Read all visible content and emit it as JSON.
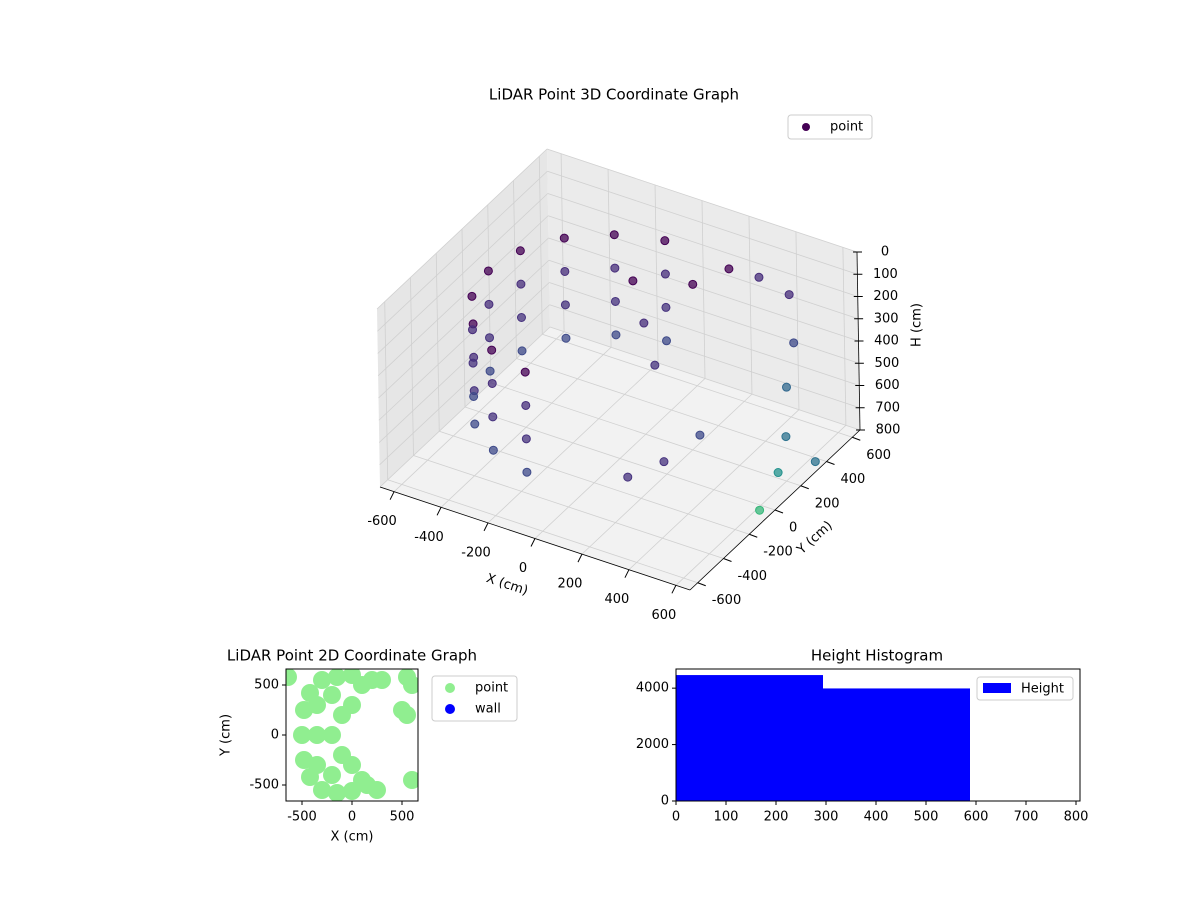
{
  "chart_data": [
    {
      "type": "scatter3d",
      "title": "LiDAR Point 3D Coordinate Graph",
      "xlabel": "X (cm)",
      "ylabel": "Y (cm)",
      "zlabel": "H (cm)",
      "xlim": [
        -660,
        660
      ],
      "ylim": [
        -660,
        660
      ],
      "zlim": [
        800,
        0
      ],
      "xticks": [
        -600,
        -400,
        -200,
        0,
        200,
        400,
        600
      ],
      "yticks": [
        -600,
        -400,
        -200,
        0,
        200,
        400,
        600
      ],
      "zticks": [
        0,
        100,
        200,
        300,
        400,
        500,
        600,
        700,
        800
      ],
      "grid": true,
      "legend": "upper right",
      "series": [
        {
          "name": "point",
          "color": "#440154",
          "x": [
            -96,
            -275,
            -421,
            -517,
            -550,
            -517,
            -421,
            -275,
            -96,
            -96,
            -275,
            -421,
            -517,
            -550,
            -517,
            -421,
            -275,
            -96,
            -96,
            -275,
            -421,
            -517,
            -550,
            -517,
            -421,
            -275,
            -96,
            -96,
            -275,
            -421,
            -517,
            -550,
            -517,
            -421,
            -275,
            -96,
            100,
            200,
            300,
            400,
            500,
            550,
            600,
            620,
            300,
            200,
            400,
            0,
            100,
            -100,
            650,
            640
          ],
          "y": [
            542,
            476,
            354,
            188,
            0,
            -188,
            -354,
            -476,
            -542,
            542,
            476,
            354,
            188,
            0,
            -188,
            -354,
            -476,
            -542,
            542,
            476,
            354,
            188,
            0,
            -188,
            -354,
            -476,
            -542,
            542,
            476,
            354,
            188,
            0,
            -188,
            -354,
            -476,
            -542,
            400,
            500,
            550,
            600,
            450,
            300,
            200,
            100,
            -200,
            -300,
            -100,
            200,
            100,
            300,
            -100,
            350
          ],
          "z": [
            150,
            150,
            150,
            150,
            150,
            150,
            150,
            150,
            150,
            300,
            300,
            300,
            300,
            300,
            300,
            300,
            300,
            300,
            450,
            450,
            450,
            450,
            450,
            450,
            450,
            450,
            450,
            600,
            600,
            600,
            600,
            600,
            600,
            600,
            600,
            600,
            200,
            150,
            180,
            250,
            350,
            450,
            600,
            700,
            600,
            650,
            500,
            300,
            400,
            200,
            750,
            780
          ],
          "colors": [
            "#440154",
            "#440154",
            "#440154",
            "#440154",
            "#440154",
            "#440154",
            "#440154",
            "#440154",
            "#440154",
            "#472d7b",
            "#472d7b",
            "#472d7b",
            "#472d7b",
            "#472d7b",
            "#472d7b",
            "#472d7b",
            "#472d7b",
            "#472d7b",
            "#46327e",
            "#46327e",
            "#46327e",
            "#46327e",
            "#46327e",
            "#46327e",
            "#46327e",
            "#46327e",
            "#46327e",
            "#3e4a89",
            "#3e4a89",
            "#3e4a89",
            "#3e4a89",
            "#3e4a89",
            "#3e4a89",
            "#3e4a89",
            "#3e4a89",
            "#3e4a89",
            "#440154",
            "#440154",
            "#472d7b",
            "#472d7b",
            "#3e4a89",
            "#31688e",
            "#2c728e",
            "#21918c",
            "#46327e",
            "#46327e",
            "#3e4a89",
            "#472d7b",
            "#46327e",
            "#440154",
            "#35b779",
            "#2c728e"
          ]
        }
      ]
    },
    {
      "type": "scatter",
      "title": "LiDAR Point 2D Coordinate Graph",
      "xlabel": "X (cm)",
      "ylabel": "Y (cm)",
      "xlim": [
        -660,
        660
      ],
      "ylim": [
        -660,
        660
      ],
      "xticks": [
        -500,
        0,
        500
      ],
      "yticks": [
        -500,
        0,
        500
      ],
      "legend": "outside right",
      "series": [
        {
          "name": "point",
          "color": "#90ee90",
          "x": [
            -500,
            -480,
            -480,
            -420,
            -420,
            -300,
            -300,
            -150,
            -150,
            0,
            0,
            -350,
            -350,
            -350,
            -200,
            -200,
            -200,
            -100,
            -100,
            0,
            0,
            100,
            150,
            250,
            100,
            200,
            300,
            550,
            600,
            500,
            550,
            600,
            -640
          ],
          "y": [
            0,
            -250,
            250,
            -420,
            420,
            -550,
            550,
            -580,
            580,
            -560,
            600,
            0,
            -300,
            300,
            -400,
            400,
            0,
            -200,
            200,
            -300,
            300,
            -450,
            -500,
            -550,
            500,
            550,
            550,
            580,
            500,
            250,
            200,
            -450,
            580
          ]
        },
        {
          "name": "wall",
          "color": "#0000ff",
          "x": [],
          "y": []
        }
      ]
    },
    {
      "type": "histogram",
      "title": "Height Histogram",
      "xlim": [
        0,
        808
      ],
      "ylim": [
        0,
        4679
      ],
      "xticks": [
        0,
        100,
        200,
        300,
        400,
        500,
        600,
        700,
        800
      ],
      "yticks": [
        0,
        2000,
        4000
      ],
      "legend": "upper right",
      "bins": [
        0,
        294,
        588,
        808
      ],
      "series": [
        {
          "name": "Height",
          "color": "#0000ff",
          "values": [
            4464,
            3990,
            0
          ]
        }
      ]
    }
  ]
}
